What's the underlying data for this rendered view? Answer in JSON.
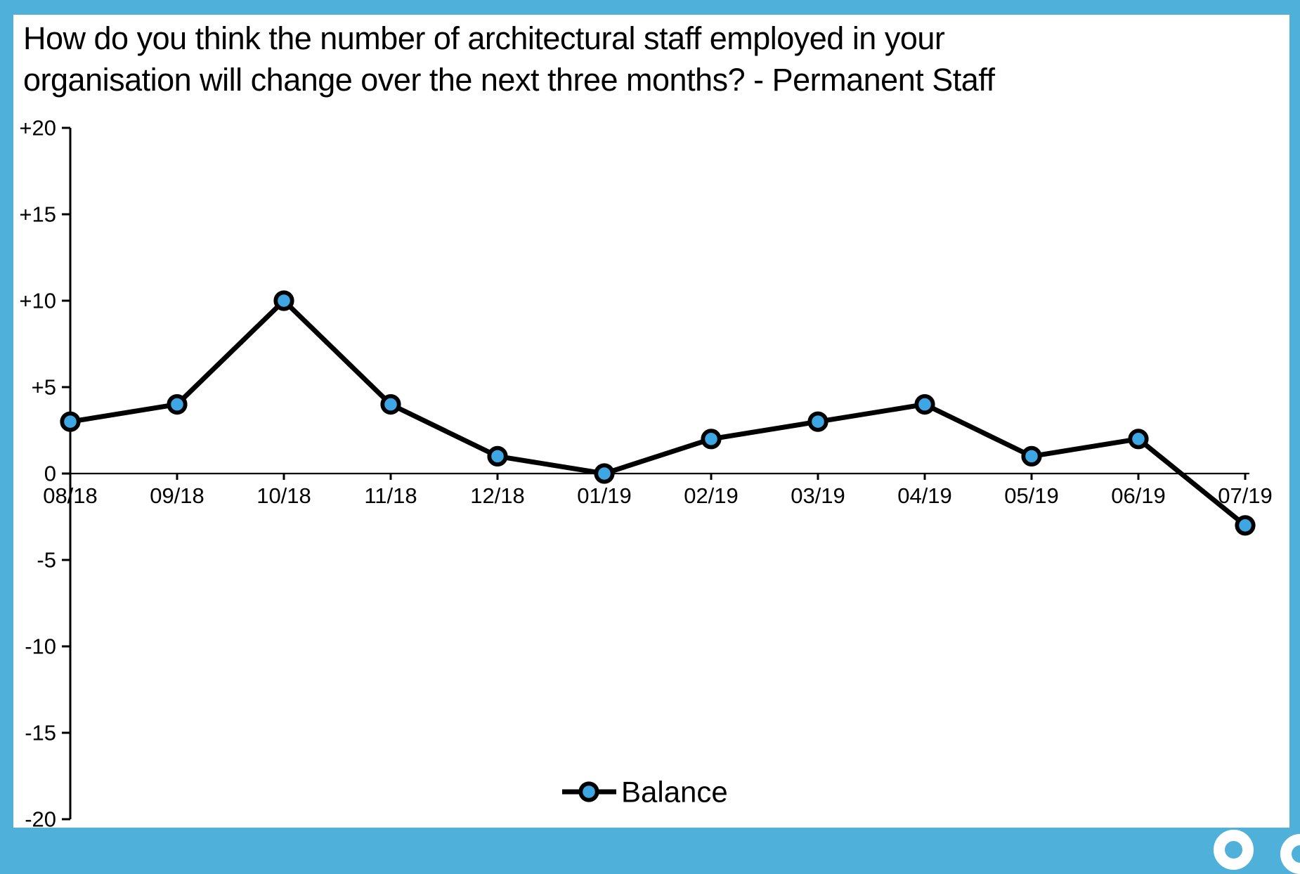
{
  "frame": {
    "border_color": "#4FB0D9",
    "card_background": "#FFFFFF",
    "ring_color": "#FFFFFF"
  },
  "title": {
    "line1": "How do you think the number of architectural staff employed in your",
    "line2": "organisation will change over the next three months? - Permanent Staff"
  },
  "chart_data": {
    "type": "line",
    "title": "How do you think the number of architectural staff employed in your organisation will change over the next three months? - Permanent Staff",
    "categories": [
      "08/18",
      "09/18",
      "10/18",
      "11/18",
      "12/18",
      "01/19",
      "02/19",
      "03/19",
      "04/19",
      "05/19",
      "06/19",
      "07/19"
    ],
    "series": [
      {
        "name": "Balance",
        "values": [
          3,
          4,
          10,
          4,
          1,
          0,
          2,
          3,
          4,
          1,
          2,
          -3
        ],
        "marker_fill": "#3EA6E3",
        "line_color": "#000000"
      }
    ],
    "xlabel": "",
    "ylabel": "",
    "ylim": [
      -20,
      20
    ],
    "ytick_values": [
      20,
      15,
      10,
      5,
      0,
      -5,
      -10,
      -15,
      -20
    ],
    "ytick_labels": [
      "+20",
      "+15",
      "+10",
      "+5",
      "0",
      "-5",
      "-10",
      "-15",
      "-20"
    ],
    "grid": "zero-line-only",
    "legend": {
      "label": "Balance",
      "position": "bottom-center"
    },
    "axis_color": "#000000",
    "text_color": "#000000"
  }
}
